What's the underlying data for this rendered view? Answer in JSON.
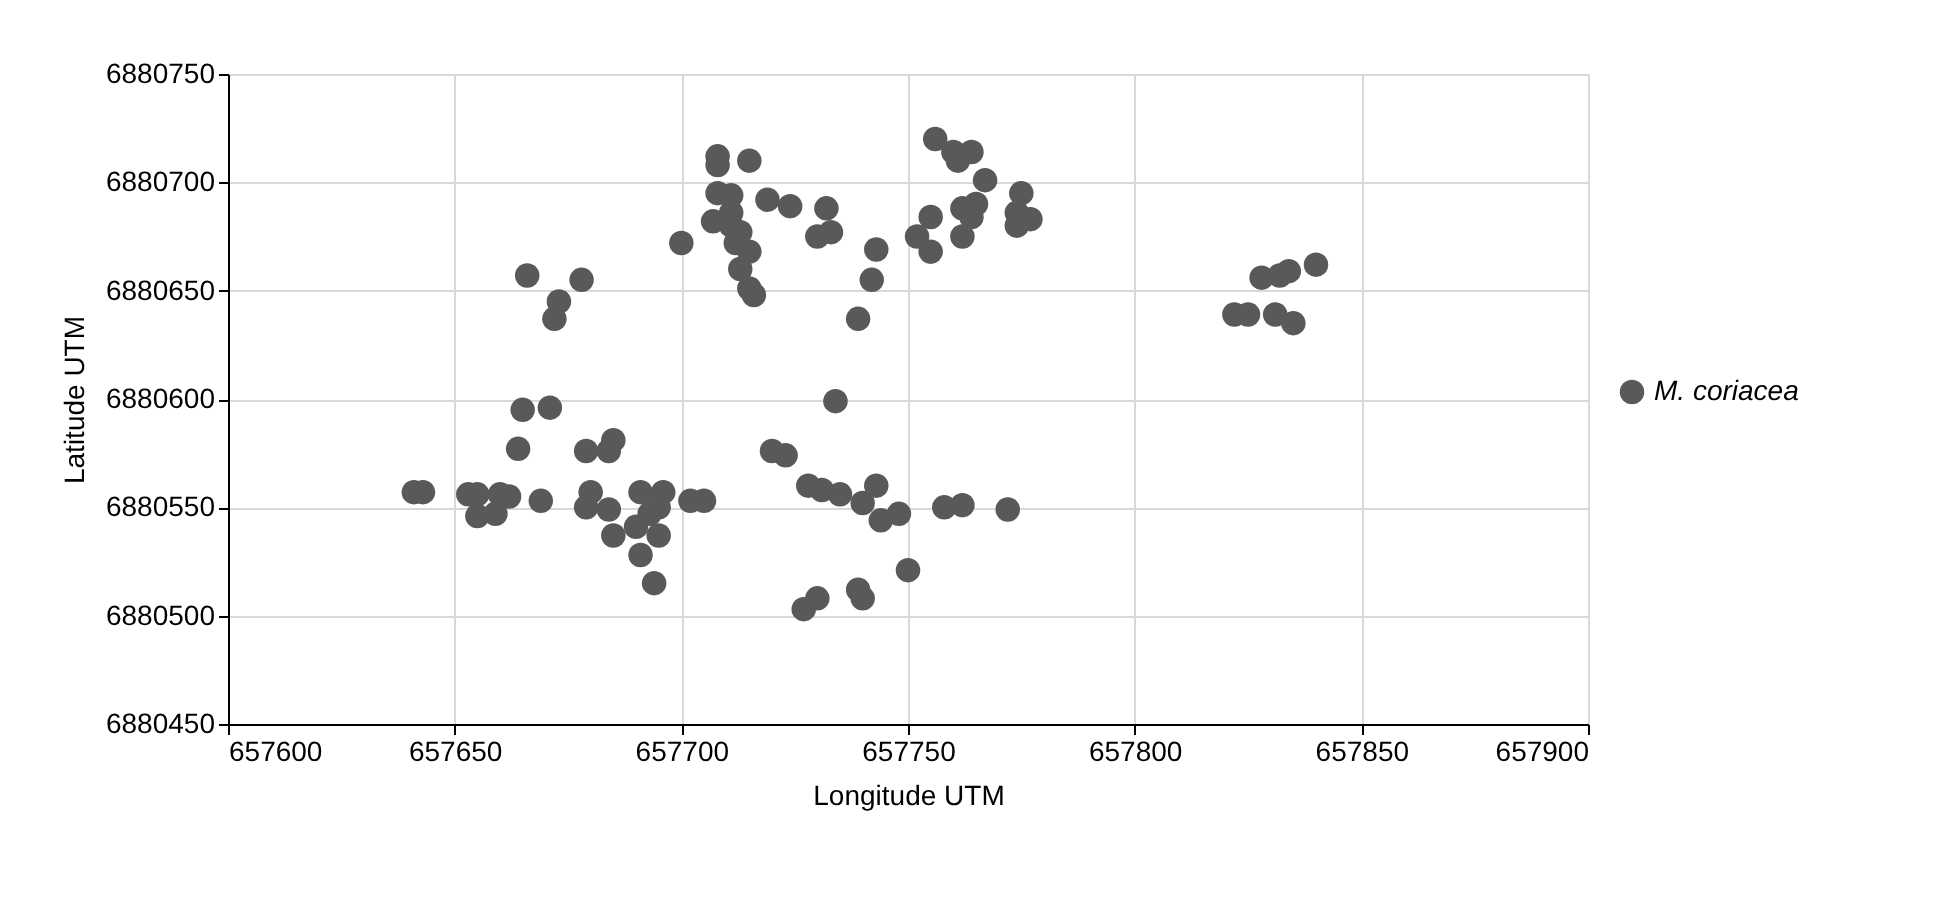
{
  "chart_data": {
    "type": "scatter",
    "xlabel": "Longitude UTM",
    "ylabel": "Latitude UTM",
    "xlim": [
      657600,
      657900
    ],
    "xticks": [
      657600,
      657650,
      657700,
      657750,
      657800,
      657850,
      657900
    ],
    "ylim": [
      6880450,
      6880750
    ],
    "yticks": [
      6880450,
      6880500,
      6880550,
      6880600,
      6880650,
      6880700,
      6880750
    ],
    "grid": true,
    "legend": "right",
    "marker": "circle",
    "series": [
      {
        "name": "M. coriacea",
        "color": "#595959",
        "x": [
          657641,
          657643,
          657653,
          657655,
          657655,
          657659,
          657660,
          657662,
          657669,
          657666,
          657678,
          657673,
          657672,
          657665,
          657671,
          657664,
          657679,
          657685,
          657684,
          657680,
          657679,
          657684,
          657685,
          657691,
          657696,
          657695,
          657690,
          657691,
          657695,
          657694,
          657693,
          657702,
          657705,
          657700,
          657720,
          657708,
          657708,
          657715,
          657708,
          657711,
          657707,
          657711,
          657711,
          657713,
          657712,
          657715,
          657713,
          657715,
          657716,
          657719,
          657724,
          657732,
          657730,
          657733,
          657743,
          657742,
          657739,
          657734,
          657723,
          657728,
          657731,
          657735,
          657740,
          657743,
          657744,
          657748,
          657758,
          657762,
          657772,
          657750,
          657727,
          657730,
          657739,
          657740,
          657756,
          657760,
          657764,
          657761,
          657767,
          657775,
          657762,
          657765,
          657764,
          657755,
          657752,
          657755,
          657762,
          657774,
          657774,
          657777,
          657822,
          657825,
          657831,
          657835,
          657828,
          657832,
          657834,
          657840
        ],
        "values": [
          6880557,
          6880557,
          6880556,
          6880556,
          6880546,
          6880547,
          6880556,
          6880555,
          6880553,
          6880657,
          6880655,
          6880645,
          6880637,
          6880595,
          6880596,
          6880577,
          6880576,
          6880581,
          6880576,
          6880557,
          6880550,
          6880549,
          6880537,
          6880557,
          6880557,
          6880550,
          6880541,
          6880528,
          6880537,
          6880515,
          6880547,
          6880553,
          6880553,
          6880672,
          6880576,
          6880712,
          6880708,
          6880710,
          6880695,
          6880694,
          6880682,
          6880686,
          6880680,
          6880677,
          6880672,
          6880668,
          6880660,
          6880651,
          6880648,
          6880692,
          6880689,
          6880688,
          6880675,
          6880677,
          6880669,
          6880655,
          6880637,
          6880599,
          6880574,
          6880560,
          6880558,
          6880556,
          6880552,
          6880560,
          6880544,
          6880547,
          6880550,
          6880551,
          6880549,
          6880521,
          6880503,
          6880508,
          6880512,
          6880508,
          6880720,
          6880714,
          6880714,
          6880710,
          6880701,
          6880695,
          6880688,
          6880690,
          6880684,
          6880684,
          6880675,
          6880668,
          6880675,
          6880686,
          6880680,
          6880683,
          6880639,
          6880639,
          6880639,
          6880635,
          6880656,
          6880657,
          6880659,
          6880662
        ]
      }
    ]
  }
}
